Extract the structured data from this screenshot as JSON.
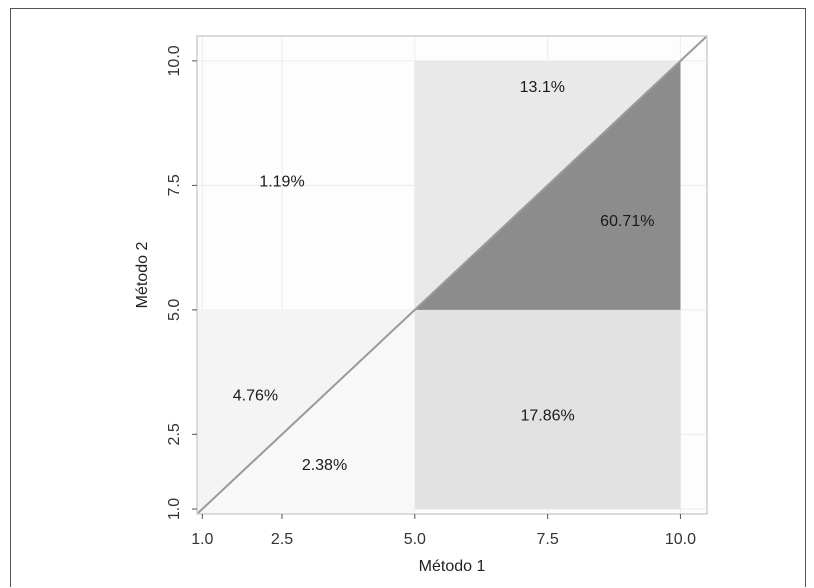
{
  "chart_data": {
    "type": "area",
    "xlabel": "Método 1",
    "ylabel": "Método 2",
    "xlim": [
      0.9,
      10.5
    ],
    "ylim": [
      0.9,
      10.5
    ],
    "x_ticks": [
      {
        "value": 1.0,
        "label": "1.0"
      },
      {
        "value": 2.5,
        "label": "2.5"
      },
      {
        "value": 5.0,
        "label": "5.0"
      },
      {
        "value": 7.5,
        "label": "7.5"
      },
      {
        "value": 10.0,
        "label": "10.0"
      }
    ],
    "y_ticks": [
      {
        "value": 1.0,
        "label": "1.0"
      },
      {
        "value": 2.5,
        "label": "2.5"
      },
      {
        "value": 5.0,
        "label": "5.0"
      },
      {
        "value": 7.5,
        "label": "7.5"
      },
      {
        "value": 10.0,
        "label": "10.0"
      }
    ],
    "grid": true,
    "diagonal": {
      "from": [
        0.9,
        0.9
      ],
      "to": [
        10.5,
        10.5
      ],
      "color": "#9a9a9a"
    },
    "regions": [
      {
        "name": "lower-left-upper",
        "polygon": [
          [
            0.9,
            5
          ],
          [
            5,
            5
          ],
          [
            0.9,
            0.9
          ]
        ],
        "color": "#f4f4f4"
      },
      {
        "name": "lower-left-lower",
        "polygon": [
          [
            0.9,
            0.9
          ],
          [
            5,
            5
          ],
          [
            5,
            0.9
          ]
        ],
        "color": "#f8f8f8"
      },
      {
        "name": "lower-right",
        "polygon": [
          [
            5,
            1
          ],
          [
            10,
            1
          ],
          [
            10,
            5
          ],
          [
            5,
            5
          ]
        ],
        "color": "#e2e2e2"
      },
      {
        "name": "upper-right-upper",
        "polygon": [
          [
            5,
            5
          ],
          [
            10,
            10
          ],
          [
            5,
            10
          ]
        ],
        "color": "#e9e9e9"
      },
      {
        "name": "upper-right-lower",
        "polygon": [
          [
            5,
            5
          ],
          [
            10,
            5
          ],
          [
            10,
            10
          ]
        ],
        "color": "#8c8c8c"
      }
    ],
    "annotations": [
      {
        "text": "1.19%",
        "x": 2.5,
        "y": 7.6
      },
      {
        "text": "13.1%",
        "x": 7.4,
        "y": 9.5
      },
      {
        "text": "60.71%",
        "x": 9.0,
        "y": 6.8
      },
      {
        "text": "4.76%",
        "x": 2.0,
        "y": 3.3
      },
      {
        "text": "17.86%",
        "x": 7.5,
        "y": 2.9
      },
      {
        "text": "2.38%",
        "x": 3.3,
        "y": 1.9
      }
    ]
  }
}
